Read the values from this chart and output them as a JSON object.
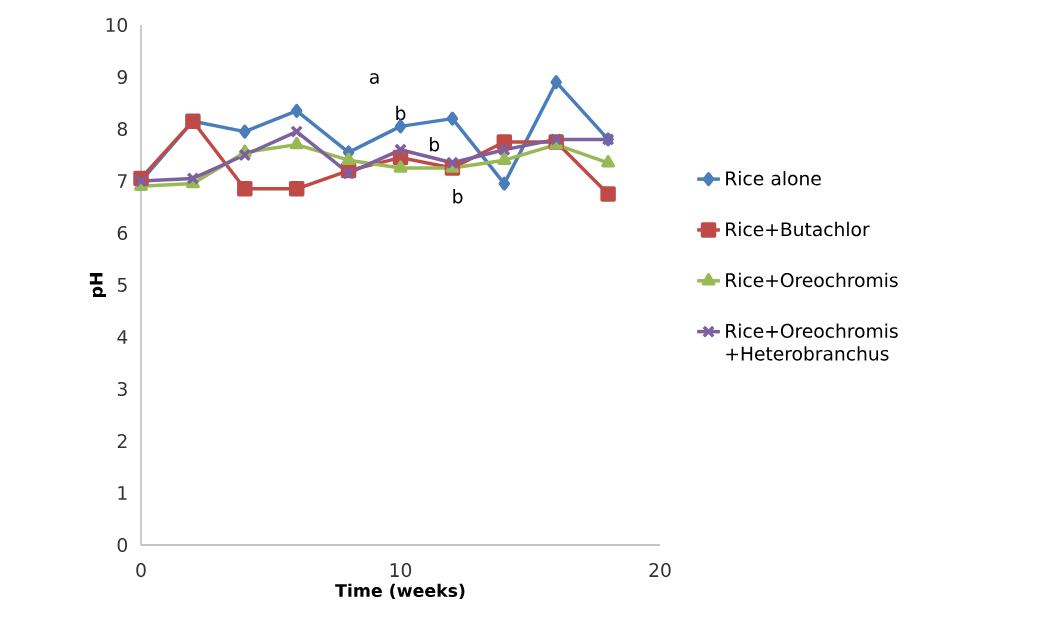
{
  "chart_data": {
    "type": "line",
    "xlabel": "Time (weeks)",
    "ylabel": "pH",
    "xlim": [
      0,
      20
    ],
    "ylim": [
      0,
      10
    ],
    "xticks": [
      0,
      10,
      20
    ],
    "yticks": [
      0,
      1,
      2,
      3,
      4,
      5,
      6,
      7,
      8,
      9,
      10
    ],
    "grid": false,
    "legend": "right",
    "line_style": "solid",
    "x": [
      0,
      2,
      4,
      6,
      8,
      10,
      12,
      14,
      16,
      18
    ],
    "series": [
      {
        "name": "Rice alone",
        "color": "#4a7ebb",
        "marker": "diamond",
        "values": [
          7.0,
          8.15,
          7.95,
          8.35,
          7.55,
          8.05,
          8.2,
          6.95,
          8.9,
          7.8
        ]
      },
      {
        "name": "Rice+Butachlor",
        "color": "#be4b48",
        "marker": "square",
        "values": [
          7.05,
          8.15,
          6.85,
          6.85,
          7.2,
          7.45,
          7.25,
          7.75,
          7.75,
          6.75
        ]
      },
      {
        "name": "Rice+Oreochromis",
        "color": "#98b954",
        "marker": "triangle",
        "values": [
          6.9,
          6.95,
          7.55,
          7.7,
          7.4,
          7.25,
          7.25,
          7.4,
          7.7,
          7.35
        ]
      },
      {
        "name": "Rice+Oreochromis +Heterobranchus",
        "color": "#7d60a0",
        "marker": "cross",
        "values": [
          7.0,
          7.05,
          7.5,
          7.95,
          7.15,
          7.6,
          7.35,
          7.6,
          7.8,
          7.8
        ]
      }
    ],
    "annotations": [
      "a",
      "b",
      "b",
      "b"
    ]
  }
}
